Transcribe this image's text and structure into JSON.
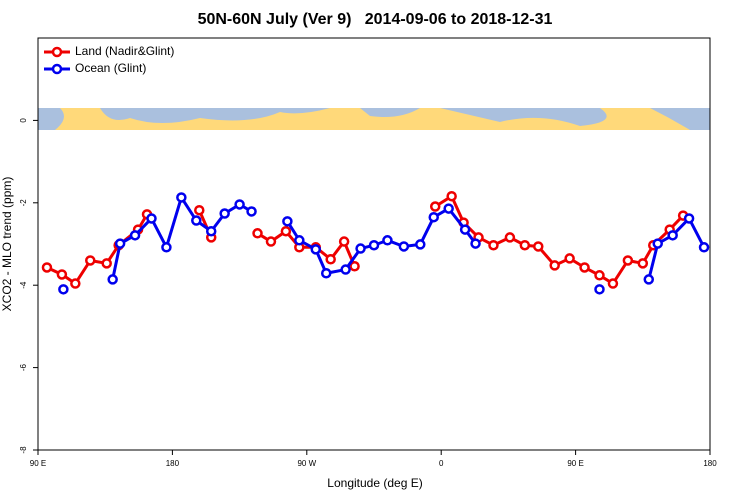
{
  "chart_data": {
    "type": "line",
    "title": "50N-60N July (Ver 9)   2014-09-06 to 2018-12-31",
    "xlabel": "Longitude (deg E)",
    "ylabel": "XCO2 - MLO trend (ppm)",
    "xlim": [
      90,
      540
    ],
    "xticks": [
      {
        "value": 90,
        "label": "90 E"
      },
      {
        "value": 180,
        "label": "180"
      },
      {
        "value": 270,
        "label": "90 W"
      },
      {
        "value": 360,
        "label": "0"
      },
      {
        "value": 450,
        "label": "90 E"
      },
      {
        "value": 540,
        "label": "180"
      }
    ],
    "ylim": [
      -8,
      2
    ],
    "yticks": [
      -8,
      -6,
      -4,
      -2,
      0
    ],
    "legend": "top-left",
    "series": [
      {
        "name": "Land (Nadir&Glint)",
        "color": "#ee0000",
        "x": [
          96,
          106,
          115,
          125,
          136,
          144,
          157,
          163,
          180,
          198,
          206,
          220,
          237,
          246,
          256,
          265,
          276,
          286,
          295,
          302,
          330,
          356,
          367,
          375,
          385,
          395,
          406,
          416,
          425,
          436,
          446,
          456,
          466,
          475,
          485,
          495,
          502,
          513,
          522
        ],
        "values": [
          -3.57,
          -3.74,
          -3.96,
          -3.4,
          -3.47,
          -3.03,
          -2.65,
          -2.28,
          null,
          -2.18,
          -2.84,
          null,
          -2.74,
          -2.94,
          -2.69,
          -3.08,
          -3.08,
          -3.37,
          -2.94,
          -3.54,
          null,
          -2.09,
          -1.84,
          -2.48,
          -2.84,
          -3.03,
          -2.84,
          -3.03,
          -3.06,
          -3.52,
          -3.35,
          -3.57,
          -3.76,
          -3.96,
          -3.4,
          -3.47,
          -3.03,
          -2.65,
          -2.31
        ]
      },
      {
        "name": "Ocean (Glint)",
        "color": "#0000ee",
        "x": [
          107,
          120,
          140,
          145,
          155,
          166,
          176,
          186,
          196,
          206,
          215,
          225,
          233,
          245,
          257,
          265,
          276,
          283,
          296,
          306,
          315,
          324,
          335,
          346,
          355,
          365,
          376,
          383,
          420,
          466,
          480,
          499,
          505,
          515,
          526,
          536
        ],
        "values": [
          -4.1,
          null,
          -3.86,
          -2.99,
          -2.79,
          -2.38,
          -3.08,
          -1.87,
          -2.43,
          -2.69,
          -2.26,
          -2.04,
          -2.21,
          null,
          -2.45,
          -2.91,
          -3.13,
          -3.71,
          -3.62,
          -3.11,
          -3.03,
          -2.91,
          -3.06,
          -3.01,
          -2.35,
          -2.14,
          -2.65,
          -2.99,
          null,
          -4.1,
          null,
          -3.86,
          -2.99,
          -2.79,
          -2.38,
          -3.08
        ]
      }
    ]
  }
}
